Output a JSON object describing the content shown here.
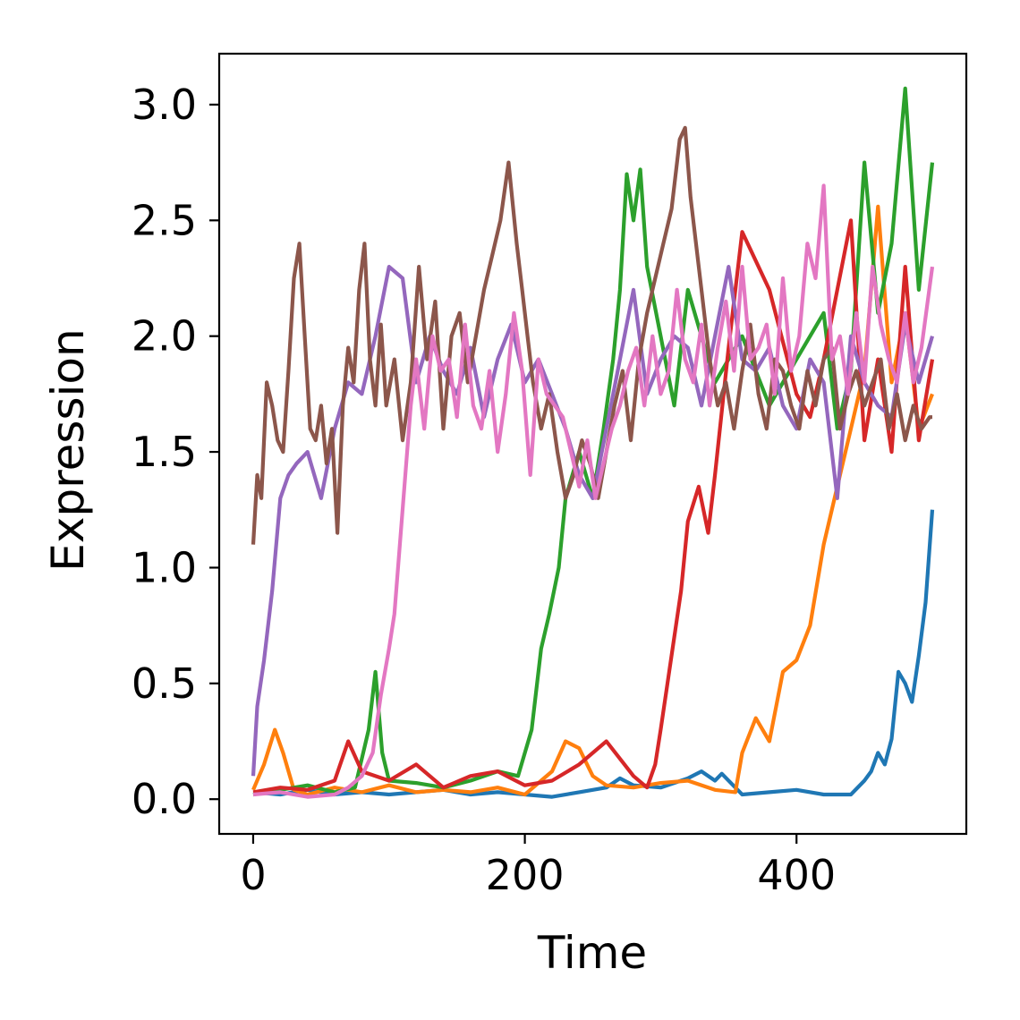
{
  "chart_data": {
    "type": "line",
    "title": "",
    "xlabel": "Time",
    "ylabel": "Expression",
    "xlim": [
      -25,
      525
    ],
    "ylim": [
      -0.15,
      3.22
    ],
    "xticks": [
      0,
      200,
      400
    ],
    "xtick_labels": [
      "0",
      "200",
      "400"
    ],
    "yticks": [
      0.0,
      0.5,
      1.0,
      1.5,
      2.0,
      2.5,
      3.0
    ],
    "ytick_labels": [
      "0.0",
      "0.5",
      "1.0",
      "1.5",
      "2.0",
      "2.5",
      "3.0"
    ],
    "grid": false,
    "series": [
      {
        "color": "#1f77b4",
        "x": [
          0,
          20,
          40,
          60,
          80,
          100,
          120,
          140,
          160,
          180,
          200,
          220,
          240,
          260,
          270,
          280,
          300,
          320,
          330,
          340,
          345,
          360,
          380,
          400,
          420,
          440,
          450,
          455,
          460,
          465,
          470,
          475,
          480,
          485,
          490,
          495,
          500
        ],
        "values": [
          0.03,
          0.02,
          0.04,
          0.02,
          0.03,
          0.02,
          0.03,
          0.04,
          0.02,
          0.03,
          0.02,
          0.01,
          0.03,
          0.05,
          0.09,
          0.06,
          0.05,
          0.09,
          0.12,
          0.08,
          0.11,
          0.02,
          0.03,
          0.04,
          0.02,
          0.02,
          0.08,
          0.12,
          0.2,
          0.15,
          0.26,
          0.55,
          0.5,
          0.42,
          0.62,
          0.85,
          1.25
        ]
      },
      {
        "color": "#ff7f0e",
        "x": [
          0,
          8,
          16,
          22,
          30,
          40,
          60,
          80,
          100,
          120,
          140,
          160,
          180,
          200,
          220,
          230,
          240,
          250,
          260,
          280,
          300,
          320,
          340,
          355,
          360,
          370,
          380,
          390,
          400,
          410,
          420,
          430,
          440,
          450,
          460,
          470,
          480,
          490,
          500
        ],
        "values": [
          0.04,
          0.15,
          0.3,
          0.2,
          0.04,
          0.02,
          0.05,
          0.03,
          0.06,
          0.03,
          0.04,
          0.03,
          0.05,
          0.02,
          0.12,
          0.25,
          0.22,
          0.1,
          0.06,
          0.05,
          0.07,
          0.08,
          0.04,
          0.03,
          0.2,
          0.35,
          0.25,
          0.55,
          0.6,
          0.75,
          1.1,
          1.35,
          1.6,
          1.85,
          2.56,
          1.8,
          2.1,
          1.6,
          1.75
        ]
      },
      {
        "color": "#2ca02c",
        "x": [
          0,
          20,
          40,
          60,
          75,
          85,
          90,
          95,
          100,
          120,
          140,
          160,
          180,
          195,
          205,
          212,
          218,
          225,
          230,
          240,
          250,
          258,
          265,
          270,
          275,
          280,
          285,
          290,
          300,
          310,
          320,
          340,
          360,
          380,
          400,
          420,
          430,
          440,
          450,
          460,
          470,
          480,
          490,
          500
        ],
        "values": [
          0.02,
          0.04,
          0.06,
          0.03,
          0.05,
          0.3,
          0.55,
          0.2,
          0.08,
          0.07,
          0.05,
          0.08,
          0.12,
          0.1,
          0.3,
          0.65,
          0.8,
          1.0,
          1.3,
          1.5,
          1.3,
          1.6,
          1.9,
          2.2,
          2.7,
          2.5,
          2.72,
          2.3,
          2.0,
          1.7,
          2.2,
          1.8,
          2.0,
          1.7,
          1.9,
          2.1,
          1.6,
          1.85,
          2.75,
          2.1,
          2.4,
          3.07,
          2.2,
          2.75
        ]
      },
      {
        "color": "#d62728",
        "x": [
          0,
          20,
          40,
          60,
          70,
          80,
          100,
          120,
          140,
          160,
          180,
          200,
          220,
          240,
          260,
          280,
          290,
          296,
          300,
          305,
          310,
          315,
          320,
          328,
          335,
          340,
          350,
          360,
          380,
          400,
          410,
          420,
          430,
          440,
          450,
          460,
          470,
          480,
          490,
          500
        ],
        "values": [
          0.03,
          0.05,
          0.04,
          0.08,
          0.25,
          0.12,
          0.08,
          0.15,
          0.05,
          0.1,
          0.12,
          0.06,
          0.08,
          0.15,
          0.25,
          0.1,
          0.05,
          0.15,
          0.3,
          0.5,
          0.7,
          0.9,
          1.2,
          1.35,
          1.15,
          1.4,
          1.95,
          2.45,
          2.2,
          1.75,
          1.65,
          1.9,
          2.2,
          2.5,
          1.55,
          1.9,
          1.5,
          2.3,
          1.55,
          1.9
        ]
      },
      {
        "color": "#9467bd",
        "x": [
          0,
          3,
          8,
          14,
          20,
          26,
          32,
          40,
          50,
          60,
          70,
          80,
          90,
          100,
          110,
          120,
          130,
          140,
          150,
          160,
          170,
          180,
          190,
          200,
          210,
          220,
          230,
          240,
          250,
          260,
          270,
          280,
          290,
          300,
          310,
          320,
          330,
          340,
          350,
          360,
          370,
          380,
          390,
          400,
          410,
          420,
          430,
          440,
          450,
          460,
          470,
          480,
          490,
          500
        ],
        "values": [
          0.1,
          0.4,
          0.6,
          0.9,
          1.3,
          1.4,
          1.45,
          1.5,
          1.3,
          1.6,
          1.8,
          1.75,
          2.0,
          2.3,
          2.25,
          1.8,
          2.0,
          1.85,
          1.75,
          1.95,
          1.65,
          1.9,
          2.05,
          1.8,
          1.9,
          1.75,
          1.6,
          1.4,
          1.3,
          1.6,
          1.9,
          2.2,
          1.75,
          1.9,
          2.0,
          1.95,
          1.7,
          2.0,
          2.3,
          1.9,
          1.85,
          1.95,
          1.7,
          1.6,
          1.9,
          1.8,
          1.3,
          2.0,
          1.8,
          1.7,
          1.65,
          2.05,
          1.8,
          2.0
        ]
      },
      {
        "color": "#8c564b",
        "x": [
          0,
          3,
          6,
          10,
          14,
          18,
          22,
          26,
          30,
          34,
          38,
          42,
          46,
          50,
          54,
          58,
          62,
          66,
          70,
          74,
          78,
          82,
          86,
          90,
          94,
          98,
          104,
          110,
          116,
          122,
          128,
          134,
          140,
          146,
          152,
          158,
          164,
          170,
          176,
          182,
          188,
          194,
          198,
          202,
          206,
          212,
          218,
          224,
          230,
          236,
          242,
          248,
          254,
          260,
          266,
          272,
          278,
          284,
          290,
          296,
          302,
          308,
          314,
          318,
          322,
          326,
          330,
          336,
          342,
          348,
          354,
          360,
          366,
          372,
          378,
          384,
          390,
          396,
          402,
          408,
          414,
          420,
          426,
          432,
          438,
          444,
          450,
          456,
          462,
          468,
          474,
          480,
          486,
          492,
          498,
          500
        ],
        "values": [
          1.1,
          1.4,
          1.3,
          1.8,
          1.7,
          1.55,
          1.5,
          1.85,
          2.25,
          2.4,
          2.0,
          1.6,
          1.55,
          1.7,
          1.45,
          1.6,
          1.15,
          1.7,
          1.95,
          1.8,
          2.2,
          2.4,
          1.9,
          1.7,
          2.05,
          1.7,
          1.9,
          1.55,
          1.8,
          2.3,
          1.9,
          2.15,
          1.6,
          2.0,
          2.1,
          1.8,
          2.0,
          2.2,
          2.35,
          2.5,
          2.75,
          2.4,
          2.2,
          2.0,
          1.8,
          1.6,
          1.75,
          1.5,
          1.3,
          1.4,
          1.55,
          1.45,
          1.3,
          1.5,
          1.7,
          1.85,
          1.55,
          1.9,
          2.1,
          2.25,
          2.4,
          2.55,
          2.85,
          2.9,
          2.6,
          2.4,
          2.2,
          1.9,
          1.7,
          1.8,
          1.6,
          1.85,
          2.05,
          1.75,
          1.6,
          1.9,
          1.85,
          1.7,
          1.6,
          1.85,
          1.7,
          1.9,
          1.95,
          1.6,
          1.75,
          1.85,
          1.7,
          1.8,
          1.9,
          1.6,
          1.75,
          1.55,
          1.7,
          1.6,
          1.65,
          1.65
        ]
      },
      {
        "color": "#e377c2",
        "x": [
          0,
          20,
          40,
          60,
          70,
          80,
          88,
          94,
          100,
          104,
          108,
          112,
          116,
          120,
          126,
          132,
          138,
          144,
          150,
          156,
          162,
          168,
          174,
          180,
          186,
          192,
          198,
          204,
          210,
          216,
          222,
          228,
          234,
          240,
          246,
          252,
          258,
          264,
          270,
          276,
          282,
          288,
          294,
          300,
          306,
          312,
          318,
          324,
          330,
          336,
          342,
          348,
          354,
          360,
          366,
          372,
          378,
          384,
          390,
          396,
          402,
          408,
          414,
          420,
          426,
          432,
          438,
          444,
          450,
          456,
          462,
          468,
          474,
          480,
          486,
          492,
          500
        ],
        "values": [
          0.02,
          0.03,
          0.01,
          0.02,
          0.05,
          0.1,
          0.2,
          0.45,
          0.65,
          0.8,
          1.1,
          1.4,
          1.7,
          1.9,
          1.6,
          2.0,
          1.85,
          1.9,
          1.65,
          2.05,
          1.7,
          1.6,
          1.85,
          1.5,
          1.75,
          2.1,
          1.85,
          1.4,
          1.9,
          1.75,
          1.7,
          1.65,
          1.5,
          1.35,
          1.55,
          1.3,
          1.45,
          1.6,
          1.7,
          1.85,
          1.95,
          1.7,
          2.0,
          1.75,
          1.85,
          2.2,
          1.9,
          1.8,
          2.05,
          1.7,
          1.95,
          2.15,
          1.85,
          2.3,
          1.9,
          1.95,
          2.05,
          1.75,
          2.25,
          1.85,
          2.0,
          2.4,
          2.25,
          2.65,
          1.9,
          2.0,
          1.75,
          2.1,
          1.8,
          2.3,
          2.05,
          1.9,
          1.8,
          2.1,
          1.8,
          1.95,
          2.3
        ]
      }
    ]
  }
}
